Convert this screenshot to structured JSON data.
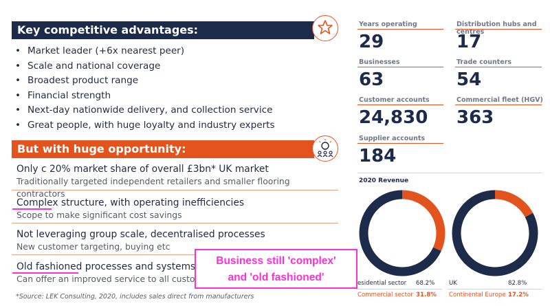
{
  "left": {
    "advantages_title": "Key competitive advantages:",
    "advantages": [
      "Market leader (+6x nearest peer)",
      "Scale and national coverage",
      "Broadest product range",
      "Financial strength",
      "Next-day nationwide delivery, and collection service",
      "Great people, with huge loyalty and industry experts"
    ],
    "opportunity_title": "But with huge opportunity:",
    "opportunities": [
      {
        "headline": "Only c 20% market share of overall £3bn* UK market",
        "detail": "Traditionally targeted independent retailers and smaller flooring contractors"
      },
      {
        "headline": "Complex structure, with operating inefficiencies",
        "detail": "Scope to make significant cost savings"
      },
      {
        "headline": "Not leveraging group scale, decentralised processes",
        "detail": "New customer targeting, buying etc"
      },
      {
        "headline": "Old fashioned processes and systems",
        "detail": "Can offer an improved service to all custo"
      }
    ],
    "footnote": "*Source: LEK Consulting, 2020, includes sales direct from manufacturers"
  },
  "stats": {
    "years_operating": {
      "label": "Years operating",
      "value": "29"
    },
    "distribution_hubs": {
      "label": "Distribution hubs and centres",
      "value": "17"
    },
    "businesses": {
      "label": "Businesses",
      "value": "63"
    },
    "trade_counters": {
      "label": "Trade counters",
      "value": "54"
    },
    "customer_accounts": {
      "label": "Customer accounts",
      "value": "24,830"
    },
    "commercial_fleet": {
      "label": "Commercial fleet (HGV)",
      "value": "363"
    },
    "supplier_accounts": {
      "label": "Supplier accounts",
      "value": "184"
    }
  },
  "revenue": {
    "title": "2020 Revenue",
    "sector": [
      {
        "label": "esidential sector",
        "value": "68.2%",
        "fraction": 0.682,
        "color": "#1c2b4a"
      },
      {
        "label": "Commercial sector",
        "value": "31.8%",
        "fraction": 0.318,
        "color": "#e3531d"
      }
    ],
    "region": [
      {
        "label": "UK",
        "value": "82.8%",
        "fraction": 0.828,
        "color": "#1c2b4a"
      },
      {
        "label": "Continental Europe",
        "value": "17.2%",
        "fraction": 0.172,
        "color": "#e3531d"
      }
    ]
  },
  "callout": {
    "line1": "Business still 'complex'",
    "line2": "and 'old fashioned'"
  },
  "colors": {
    "navy": "#1c2b4a",
    "orange": "#e3531d",
    "magenta": "#ff2fd5"
  }
}
